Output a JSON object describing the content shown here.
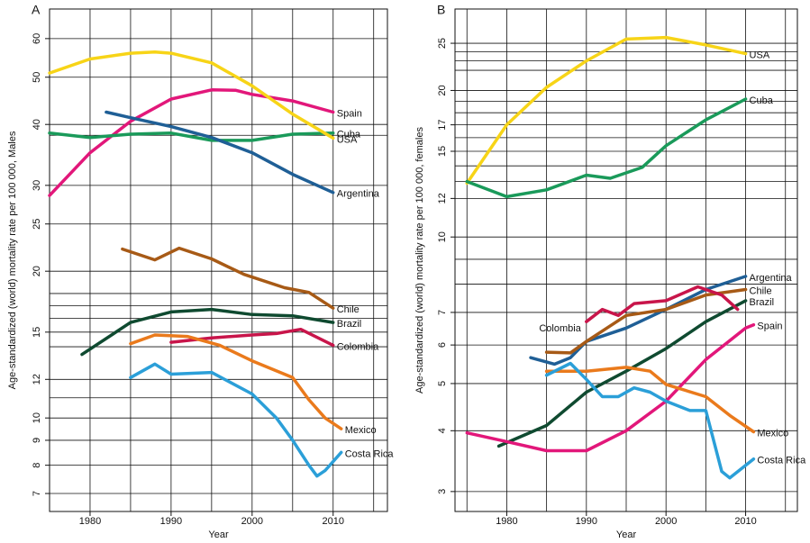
{
  "chart_data": [
    {
      "type": "line",
      "title": "A",
      "x_label": "Year",
      "y_label": "Age-standardized (world) mortality rate per 100 000, Males",
      "y_scale": "log",
      "xlim": [
        1975,
        2016.7
      ],
      "ylim": [
        6.43,
        69
      ],
      "xticks": [
        1980,
        1990,
        2000,
        2010
      ],
      "yticks": [
        7,
        8,
        9,
        10,
        12,
        15,
        20,
        25,
        30,
        40,
        50,
        60
      ],
      "x_grid": [
        1975,
        1980,
        1985,
        1990,
        1995,
        2000,
        2005,
        2010,
        2015
      ],
      "y_grid": [
        7,
        8,
        9,
        10,
        11,
        12,
        14,
        15,
        16,
        17,
        18,
        20,
        25,
        30,
        38,
        40,
        50,
        60
      ],
      "series": [
        {
          "name": "Spain",
          "color": "#e2177a",
          "x": [
            1975,
            1980,
            1985,
            1990,
            1995,
            1998,
            2000,
            2005,
            2010
          ],
          "values": [
            28.6,
            35.0,
            40.6,
            45.1,
            47.1,
            47,
            46.1,
            44.7,
            42.4
          ]
        },
        {
          "name": "Cuba",
          "color": "#1a9a5a",
          "x": [
            1975,
            1980,
            1985,
            1990,
            1995,
            2000,
            2005,
            2010
          ],
          "values": [
            38.4,
            37.6,
            38.2,
            38.4,
            37.1,
            37.1,
            38.2,
            38.4
          ]
        },
        {
          "name": "USA",
          "color": "#f7d417",
          "x": [
            1975,
            1980,
            1985,
            1988,
            1990,
            1995,
            2000,
            2005,
            2010
          ],
          "values": [
            51,
            54.5,
            56,
            56.3,
            56,
            53.5,
            48,
            42,
            37.5
          ]
        },
        {
          "name": "Argentina",
          "color": "#1f5f96",
          "x": [
            1982,
            1985,
            1990,
            1995,
            2000,
            2005,
            2010
          ],
          "values": [
            42.4,
            41.3,
            39.6,
            37.6,
            35.0,
            31.6,
            29.0
          ]
        },
        {
          "name": "Chile",
          "color": "#a75a16",
          "x": [
            1984,
            1988,
            1991,
            1995,
            1999,
            2004,
            2007,
            2010
          ],
          "values": [
            22.2,
            21.1,
            22.3,
            21.2,
            19.7,
            18.5,
            18.1,
            16.8
          ]
        },
        {
          "name": "Brazil",
          "color": "#0f4a30",
          "x": [
            1979,
            1985,
            1990,
            1995,
            2000,
            2005,
            2010
          ],
          "values": [
            13.5,
            15.7,
            16.5,
            16.7,
            16.3,
            16.2,
            15.7
          ]
        },
        {
          "name": "Colombia",
          "color": "#c8154a",
          "x": [
            1990,
            1995,
            2000,
            2003,
            2006,
            2010
          ],
          "values": [
            14.3,
            14.6,
            14.8,
            14.9,
            15.2,
            14.1
          ]
        },
        {
          "name": "Mexico",
          "color": "#ea7a1c",
          "x": [
            1985,
            1988,
            1992,
            1996,
            2000,
            2005,
            2007,
            2009,
            2011
          ],
          "values": [
            14.2,
            14.8,
            14.7,
            14.1,
            13.1,
            12.1,
            10.9,
            10.0,
            9.5
          ]
        },
        {
          "name": "Costa Rica",
          "color": "#2b9fd8",
          "x": [
            1985,
            1988,
            1990,
            1995,
            2000,
            2003,
            2005,
            2007,
            2008,
            2009,
            2011
          ],
          "values": [
            12.1,
            12.9,
            12.3,
            12.4,
            11.2,
            10.0,
            9.0,
            8.0,
            7.6,
            7.8,
            8.5
          ]
        }
      ]
    },
    {
      "type": "line",
      "title": "B",
      "x_label": "Year",
      "y_label": "Age-standardized (world) mortality rate per 100 000, females",
      "y_scale": "log",
      "xlim": [
        1973.5,
        2016.5
      ],
      "ylim": [
        2.73,
        29.4
      ],
      "xticks": [
        1980,
        1990,
        2000,
        2010
      ],
      "yticks": [
        3,
        4,
        5,
        6,
        7,
        10,
        12,
        15,
        17,
        20,
        25
      ],
      "x_grid": [
        1975,
        1980,
        1985,
        1990,
        1995,
        2000,
        2005,
        2010,
        2015
      ],
      "y_grid": [
        3,
        4,
        5,
        6,
        7,
        8,
        9,
        10,
        12,
        13,
        14,
        15,
        16,
        17,
        18,
        19,
        20,
        22,
        23,
        24,
        25
      ],
      "series": [
        {
          "name": "USA",
          "color": "#f7d417",
          "x": [
            1975,
            1980,
            1985,
            1990,
            1995,
            2000,
            2005,
            2010
          ],
          "values": [
            12.9,
            17.0,
            20.3,
            23.0,
            25.5,
            25.7,
            24.8,
            23.8
          ]
        },
        {
          "name": "Cuba",
          "color": "#1a9a5a",
          "x": [
            1975,
            1980,
            1985,
            1990,
            1993,
            1997,
            2000,
            2005,
            2010
          ],
          "values": [
            13.0,
            12.1,
            12.5,
            13.4,
            13.2,
            13.9,
            15.4,
            17.4,
            19.2
          ]
        },
        {
          "name": "Argentina",
          "color": "#1f5f96",
          "x": [
            1983,
            1986,
            1988,
            1990,
            1995,
            2000,
            2005,
            2010
          ],
          "values": [
            5.65,
            5.48,
            5.65,
            6.1,
            6.5,
            7.1,
            7.8,
            8.3
          ]
        },
        {
          "name": "Chile",
          "color": "#a75a16",
          "x": [
            1985,
            1988,
            1990,
            1995,
            2000,
            2005,
            2010
          ],
          "values": [
            5.8,
            5.78,
            6.1,
            6.9,
            7.1,
            7.6,
            7.8
          ]
        },
        {
          "name": "Brazil",
          "color": "#0f4a30",
          "x": [
            1979,
            1985,
            1990,
            1995,
            2000,
            2005,
            2010
          ],
          "values": [
            3.72,
            4.1,
            4.8,
            5.3,
            5.9,
            6.7,
            7.4
          ]
        },
        {
          "name": "Colombia",
          "color": "#c8154a",
          "label_position": "start",
          "x": [
            1990,
            1992,
            1994,
            1996,
            2000,
            2004,
            2007,
            2009
          ],
          "values": [
            6.7,
            7.1,
            6.9,
            7.3,
            7.4,
            7.9,
            7.6,
            7.1
          ]
        },
        {
          "name": "Spain",
          "color": "#e2177a",
          "x": [
            1975,
            1980,
            1985,
            1990,
            1995,
            2000,
            2005,
            2010,
            2011
          ],
          "values": [
            3.96,
            3.8,
            3.64,
            3.64,
            4.0,
            4.6,
            5.6,
            6.5,
            6.6
          ]
        },
        {
          "name": "Mexico",
          "color": "#ea7a1c",
          "x": [
            1985,
            1990,
            1995,
            1998,
            2000,
            2005,
            2008,
            2011
          ],
          "values": [
            5.3,
            5.3,
            5.4,
            5.3,
            4.98,
            4.7,
            4.3,
            3.98
          ]
        },
        {
          "name": "Costa Rica",
          "color": "#2b9fd8",
          "x": [
            1985,
            1988,
            1990,
            1992,
            1994,
            1996,
            1998,
            2000,
            2003,
            2005,
            2007,
            2008,
            2011
          ],
          "values": [
            5.2,
            5.5,
            5.1,
            4.7,
            4.7,
            4.9,
            4.8,
            4.6,
            4.4,
            4.4,
            3.3,
            3.2,
            3.5
          ]
        }
      ]
    }
  ]
}
